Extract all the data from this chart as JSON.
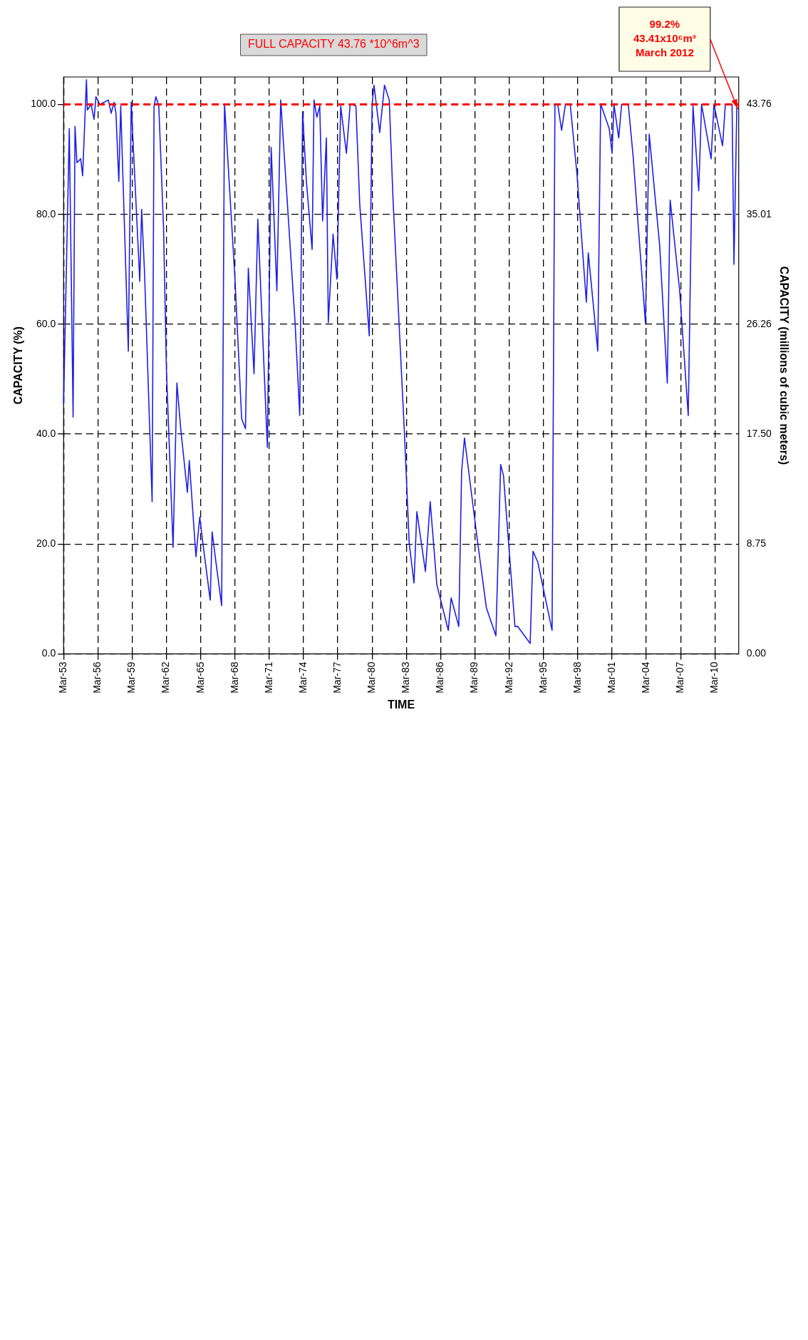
{
  "chart_data": {
    "type": "line",
    "xlabel": "TIME",
    "ylabel": "CAPACITY (%)",
    "y2label": "CAPACITY (millions of cubic meters)",
    "x": [
      "1953-03",
      "1953-09",
      "1954-01",
      "1954-03",
      "1954-05",
      "1954-09",
      "1954-11",
      "1955-03",
      "1955-04",
      "1955-08",
      "1955-11",
      "1956-01",
      "1956-05",
      "1957-02",
      "1957-05",
      "1957-08",
      "1957-10",
      "1958-01",
      "1958-03",
      "1958-11",
      "1959-02",
      "1959-11",
      "1960-01",
      "1960-04",
      "1960-12",
      "1961-02",
      "1961-04",
      "1961-07",
      "1961-12",
      "1962-03",
      "1962-10",
      "1963-02",
      "1963-06",
      "1964-01",
      "1964-03",
      "1964-10",
      "1965-02",
      "1965-05",
      "1966-01",
      "1966-03",
      "1966-07",
      "1967-01",
      "1967-04",
      "1968-03",
      "1968-10",
      "1969-02",
      "1969-05",
      "1969-11",
      "1970-03",
      "1971-01",
      "1971-05",
      "1971-11",
      "1972-03",
      "1973-06",
      "1973-11",
      "1974-02",
      "1974-06",
      "1974-12",
      "1975-02",
      "1975-05",
      "1975-08",
      "1975-11",
      "1976-03",
      "1976-05",
      "1976-10",
      "1977-02",
      "1977-06",
      "1977-12",
      "1978-04",
      "1978-10",
      "1979-02",
      "1979-12",
      "1980-03",
      "1980-05",
      "1980-11",
      "1981-04",
      "1981-09",
      "1982-01",
      "1983-01",
      "1983-06",
      "1983-11",
      "1984-02",
      "1984-11",
      "1985-04",
      "1985-11",
      "1986-11",
      "1987-02",
      "1987-10",
      "1988-01",
      "1988-04",
      "1989-06",
      "1990-03",
      "1991-01",
      "1991-06",
      "1991-09",
      "1992-09",
      "1992-12",
      "1994-01",
      "1994-04",
      "1994-09",
      "1995-12",
      "1996-03",
      "1996-06",
      "1996-10",
      "1997-02",
      "1997-07",
      "1998-02",
      "1998-12",
      "1999-02",
      "1999-12",
      "2000-03",
      "2000-12",
      "2001-03",
      "2001-05",
      "2001-10",
      "2002-01",
      "2002-08",
      "2003-01",
      "2004-02",
      "2004-06",
      "2005-05",
      "2006-01",
      "2006-04",
      "2007-02",
      "2007-11",
      "2008-04",
      "2008-10",
      "2009-01",
      "2009-11",
      "2010-02",
      "2010-11",
      "2011-02",
      "2011-09",
      "2011-11",
      "2012-02",
      "2012-03"
    ],
    "values": [
      45.5,
      95.6,
      43.1,
      96,
      89.4,
      90.1,
      87,
      104.5,
      99,
      100,
      97.3,
      101.4,
      100,
      100.8,
      98.4,
      100.4,
      98.4,
      86,
      99.7,
      55.1,
      100.4,
      67.8,
      80.9,
      69.5,
      27.7,
      99.7,
      101.4,
      99.7,
      77.4,
      51.7,
      19.4,
      49.3,
      41,
      29.4,
      35.2,
      17.7,
      24.9,
      20.5,
      9.8,
      22.2,
      16.7,
      8.8,
      100.1,
      68.2,
      42.8,
      41,
      70.2,
      51,
      79.1,
      37.6,
      92.2,
      66.1,
      100.8,
      60.6,
      43.4,
      98.7,
      86,
      73.6,
      100.8,
      97.7,
      99.7,
      78.8,
      93.9,
      60.3,
      76.4,
      68.2,
      99.7,
      91.1,
      100.1,
      99.7,
      81.9,
      57.9,
      100.1,
      103.5,
      94.9,
      103.5,
      100.8,
      82.6,
      40,
      20.1,
      12.9,
      25.9,
      15,
      27.7,
      12.6,
      4.3,
      10.2,
      5,
      33.2,
      39.3,
      20.1,
      8.4,
      3.3,
      34.5,
      32.4,
      5,
      5,
      1.9,
      18.7,
      16.7,
      4.3,
      100.1,
      100,
      95.3,
      100,
      100.1,
      87.6,
      64,
      73,
      55.1,
      100.1,
      95.6,
      91.1,
      100,
      93.9,
      100,
      100,
      90.8,
      60.3,
      94.6,
      74.3,
      49.3,
      82.6,
      66.1,
      43.4,
      99.7,
      84.3,
      100,
      90.1,
      100,
      92.5,
      100,
      100,
      70.9,
      99.4,
      99.2
    ],
    "color": "#1f1fe6",
    "marker": "none",
    "line_style": "solid",
    "xlim": [
      "1953-03",
      "2012-04"
    ],
    "xticks": [
      {
        "value": "1953-03",
        "label": "Mar-53"
      },
      {
        "value": "1956-03",
        "label": "Mar-56"
      },
      {
        "value": "1959-03",
        "label": "Mar-59"
      },
      {
        "value": "1962-03",
        "label": "Mar-62"
      },
      {
        "value": "1965-03",
        "label": "Mar-65"
      },
      {
        "value": "1968-03",
        "label": "Mar-68"
      },
      {
        "value": "1971-03",
        "label": "Mar-71"
      },
      {
        "value": "1974-03",
        "label": "Mar-74"
      },
      {
        "value": "1977-03",
        "label": "Mar-77"
      },
      {
        "value": "1980-03",
        "label": "Mar-80"
      },
      {
        "value": "1983-03",
        "label": "Mar-83"
      },
      {
        "value": "1986-03",
        "label": "Mar-86"
      },
      {
        "value": "1989-03",
        "label": "Mar-89"
      },
      {
        "value": "1992-03",
        "label": "Mar-92"
      },
      {
        "value": "1995-03",
        "label": "Mar-95"
      },
      {
        "value": "1998-03",
        "label": "Mar-98"
      },
      {
        "value": "2001-03",
        "label": "Mar-01"
      },
      {
        "value": "2004-03",
        "label": "Mar-04"
      },
      {
        "value": "2007-03",
        "label": "Mar-07"
      },
      {
        "value": "2010-03",
        "label": "Mar-10"
      }
    ],
    "ylim": [
      0,
      105
    ],
    "yticks": [
      {
        "value": 0,
        "label": "0.0"
      },
      {
        "value": 20,
        "label": "20.0"
      },
      {
        "value": 40,
        "label": "40.0"
      },
      {
        "value": 60,
        "label": "60.0"
      },
      {
        "value": 80,
        "label": "80.0"
      },
      {
        "value": 100,
        "label": "100.0"
      }
    ],
    "y2lim": [
      0,
      45.95
    ],
    "y2ticks": [
      {
        "value": 0,
        "label": "0.00"
      },
      8.75,
      {
        "value": 17.5,
        "label": "17.50"
      },
      26.26,
      35.01,
      43.76
    ],
    "grid": true,
    "ref_lines": [
      {
        "axis": "y",
        "value": 100,
        "label": "FULL CAPACITY 43.76 *10^6m^3",
        "color": "#ff0000",
        "line_style": "dashed"
      }
    ],
    "annotations": [
      "99.2%\n43.41x10⁶m³\nMarch 2012"
    ]
  }
}
